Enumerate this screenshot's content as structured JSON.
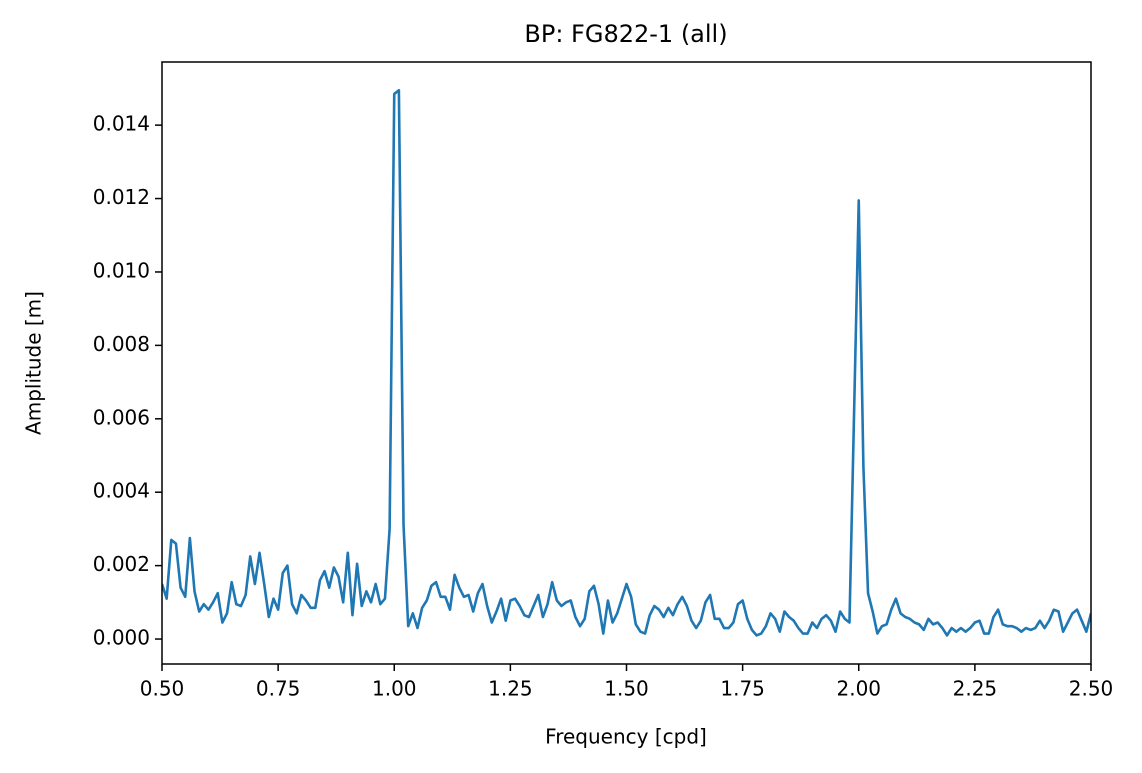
{
  "chart_data": {
    "type": "line",
    "title": "BP: FG822-1 (all)",
    "x_label": "Frequency [cpd]",
    "y_label": "Amplitude [m]",
    "color": "#1f77b4",
    "xlim": [
      0.5,
      2.5
    ],
    "ylim": [
      -0.00068,
      0.01572
    ],
    "xticks": [
      {
        "value": 0.5,
        "label": "0.50"
      },
      {
        "value": 0.75,
        "label": "0.75"
      },
      {
        "value": 1.0,
        "label": "1.00"
      },
      {
        "value": 1.25,
        "label": "1.25"
      },
      {
        "value": 1.5,
        "label": "1.50"
      },
      {
        "value": 1.75,
        "label": "1.75"
      },
      {
        "value": 2.0,
        "label": "2.00"
      },
      {
        "value": 2.25,
        "label": "2.25"
      },
      {
        "value": 2.5,
        "label": "2.50"
      }
    ],
    "yticks": [
      {
        "value": 0,
        "label": "0.000"
      },
      {
        "value": 0.002,
        "label": "0.002"
      },
      {
        "value": 0.004,
        "label": "0.004"
      },
      {
        "value": 0.006,
        "label": "0.006"
      },
      {
        "value": 0.008,
        "label": "0.008"
      },
      {
        "value": 0.01,
        "label": "0.010"
      },
      {
        "value": 0.012,
        "label": "0.012"
      },
      {
        "value": 0.014,
        "label": "0.014"
      }
    ],
    "x": [
      0.5,
      0.51,
      0.52,
      0.53,
      0.54,
      0.55,
      0.56,
      0.57,
      0.58,
      0.59,
      0.6,
      0.61,
      0.62,
      0.63,
      0.64,
      0.65,
      0.66,
      0.67,
      0.68,
      0.69,
      0.7,
      0.71,
      0.72,
      0.73,
      0.74,
      0.75,
      0.76,
      0.77,
      0.78,
      0.79,
      0.8,
      0.81,
      0.82,
      0.83,
      0.84,
      0.85,
      0.86,
      0.87,
      0.88,
      0.89,
      0.9,
      0.91,
      0.92,
      0.93,
      0.94,
      0.95,
      0.96,
      0.97,
      0.98,
      0.99,
      1.0,
      1.01,
      1.02,
      1.03,
      1.04,
      1.05,
      1.06,
      1.07,
      1.08,
      1.09,
      1.1,
      1.11,
      1.12,
      1.13,
      1.14,
      1.15,
      1.16,
      1.17,
      1.18,
      1.19,
      1.2,
      1.21,
      1.22,
      1.23,
      1.24,
      1.25,
      1.26,
      1.27,
      1.28,
      1.29,
      1.3,
      1.31,
      1.32,
      1.33,
      1.34,
      1.35,
      1.36,
      1.37,
      1.38,
      1.39,
      1.4,
      1.41,
      1.42,
      1.43,
      1.44,
      1.45,
      1.46,
      1.47,
      1.48,
      1.49,
      1.5,
      1.51,
      1.52,
      1.53,
      1.54,
      1.55,
      1.56,
      1.57,
      1.58,
      1.59,
      1.6,
      1.61,
      1.62,
      1.63,
      1.64,
      1.65,
      1.66,
      1.67,
      1.68,
      1.69,
      1.7,
      1.71,
      1.72,
      1.73,
      1.74,
      1.75,
      1.76,
      1.77,
      1.78,
      1.79,
      1.8,
      1.81,
      1.82,
      1.83,
      1.84,
      1.85,
      1.86,
      1.87,
      1.88,
      1.89,
      1.9,
      1.91,
      1.92,
      1.93,
      1.94,
      1.95,
      1.96,
      1.97,
      1.98,
      1.99,
      2.0,
      2.01,
      2.02,
      2.03,
      2.04,
      2.05,
      2.06,
      2.07,
      2.08,
      2.09,
      2.1,
      2.11,
      2.12,
      2.13,
      2.14,
      2.15,
      2.16,
      2.17,
      2.18,
      2.19,
      2.2,
      2.21,
      2.22,
      2.23,
      2.24,
      2.25,
      2.26,
      2.27,
      2.28,
      2.29,
      2.3,
      2.31,
      2.32,
      2.33,
      2.34,
      2.35,
      2.36,
      2.37,
      2.38,
      2.39,
      2.4,
      2.41,
      2.42,
      2.43,
      2.44,
      2.45,
      2.46,
      2.47,
      2.48,
      2.49,
      2.5
    ],
    "values": [
      0.0015,
      0.0011,
      0.0027,
      0.0026,
      0.0014,
      0.00115,
      0.00275,
      0.0013,
      0.00075,
      0.00095,
      0.0008,
      0.001,
      0.00125,
      0.00045,
      0.0007,
      0.00155,
      0.00095,
      0.0009,
      0.0012,
      0.00225,
      0.0015,
      0.00235,
      0.0015,
      0.0006,
      0.0011,
      0.0008,
      0.0018,
      0.002,
      0.00095,
      0.0007,
      0.0012,
      0.00105,
      0.00085,
      0.00085,
      0.0016,
      0.00185,
      0.0014,
      0.00195,
      0.0017,
      0.001,
      0.00235,
      0.00065,
      0.00205,
      0.0009,
      0.0013,
      0.001,
      0.0015,
      0.00095,
      0.0011,
      0.003,
      0.01485,
      0.01495,
      0.0031,
      0.00035,
      0.0007,
      0.0003,
      0.00085,
      0.00105,
      0.00145,
      0.00155,
      0.00115,
      0.00115,
      0.0008,
      0.00175,
      0.0014,
      0.00115,
      0.0012,
      0.00075,
      0.00125,
      0.0015,
      0.0009,
      0.00045,
      0.00075,
      0.0011,
      0.0005,
      0.00105,
      0.0011,
      0.0009,
      0.00065,
      0.0006,
      0.0009,
      0.0012,
      0.0006,
      0.00095,
      0.00155,
      0.00105,
      0.0009,
      0.001,
      0.00105,
      0.0006,
      0.00035,
      0.00055,
      0.0013,
      0.00145,
      0.00095,
      0.00015,
      0.00105,
      0.00045,
      0.0007,
      0.0011,
      0.0015,
      0.00115,
      0.0004,
      0.0002,
      0.00015,
      0.00065,
      0.0009,
      0.0008,
      0.0006,
      0.00085,
      0.00065,
      0.00095,
      0.00115,
      0.0009,
      0.0005,
      0.0003,
      0.0005,
      0.001,
      0.0012,
      0.00055,
      0.00055,
      0.0003,
      0.0003,
      0.00045,
      0.00095,
      0.00105,
      0.00055,
      0.00025,
      0.0001,
      0.00015,
      0.00035,
      0.0007,
      0.00055,
      0.0002,
      0.00075,
      0.0006,
      0.0005,
      0.0003,
      0.00015,
      0.00015,
      0.00045,
      0.0003,
      0.00055,
      0.00065,
      0.0005,
      0.0002,
      0.00075,
      0.00055,
      0.00045,
      0.0062,
      0.01195,
      0.0047,
      0.00125,
      0.00075,
      0.00015,
      0.00035,
      0.0004,
      0.0008,
      0.0011,
      0.0007,
      0.0006,
      0.00055,
      0.00045,
      0.0004,
      0.00025,
      0.00055,
      0.0004,
      0.00045,
      0.0003,
      0.0001,
      0.0003,
      0.0002,
      0.0003,
      0.0002,
      0.0003,
      0.00045,
      0.0005,
      0.00015,
      0.00015,
      0.0006,
      0.0008,
      0.0004,
      0.00035,
      0.00035,
      0.0003,
      0.0002,
      0.0003,
      0.00025,
      0.0003,
      0.0005,
      0.0003,
      0.0005,
      0.0008,
      0.00075,
      0.0002,
      0.00045,
      0.0007,
      0.0008,
      0.0005,
      0.0002,
      0.0007
    ]
  }
}
